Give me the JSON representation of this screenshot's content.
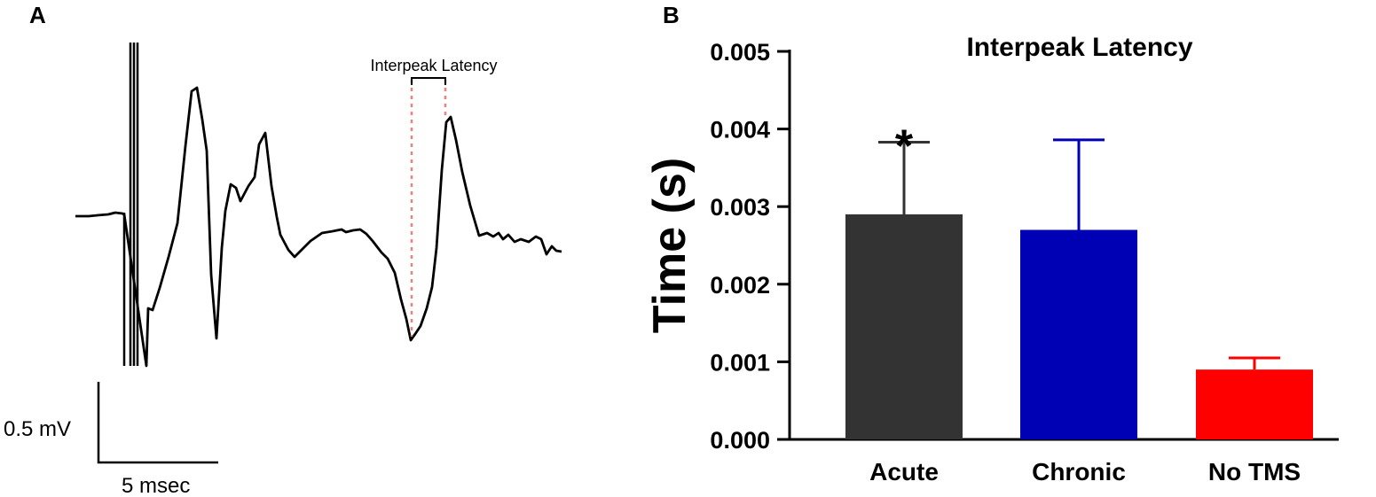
{
  "panel_a": {
    "label": "A",
    "annotation": "Interpeak Latency",
    "scale_bar_y": "0.5 mV",
    "scale_bar_x": "5 msec"
  },
  "panel_b": {
    "label": "B"
  },
  "chart_data": {
    "type": "bar",
    "title": "Interpeak Latency",
    "xlabel": "",
    "ylabel": "Time (s)",
    "ylim": [
      0,
      0.005
    ],
    "yticks": [
      "0.000",
      "0.001",
      "0.002",
      "0.003",
      "0.004",
      "0.005"
    ],
    "categories": [
      "Acute",
      "Chronic",
      "No TMS"
    ],
    "values": [
      0.0029,
      0.0027,
      0.0009
    ],
    "errors": [
      0.00093,
      0.00116,
      0.00015
    ],
    "colors": [
      "#333333",
      "#0000b4",
      "#ff0000"
    ],
    "significance": [
      "*",
      "",
      ""
    ],
    "grid": false,
    "legend": "none"
  }
}
